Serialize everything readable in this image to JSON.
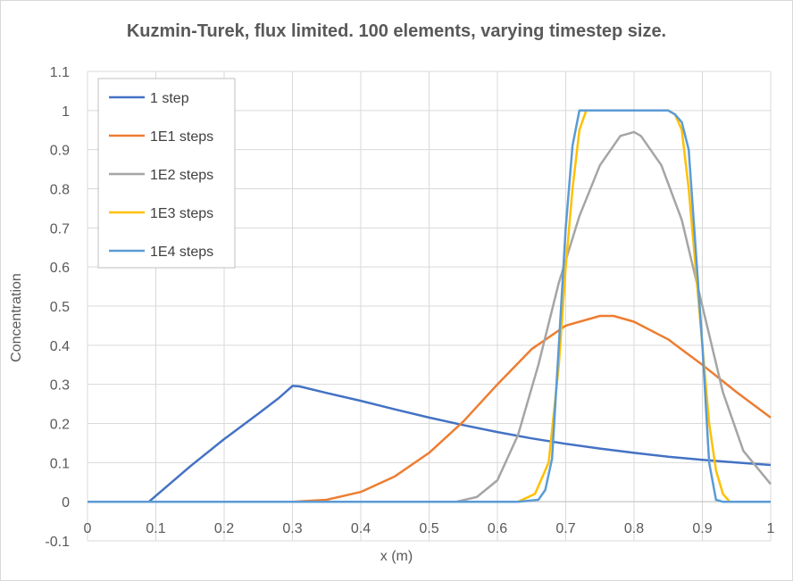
{
  "chart_data": {
    "type": "line",
    "title": "Kuzmin-Turek, flux limited. 100 elements, varying timestep size.",
    "xlabel": "x (m)",
    "ylabel": "Concentration",
    "xlim": [
      0,
      1
    ],
    "ylim": [
      -0.1,
      1.1
    ],
    "x_ticks": [
      "0",
      "0.1",
      "0.2",
      "0.3",
      "0.4",
      "0.5",
      "0.6",
      "0.7",
      "0.8",
      "0.9",
      "1"
    ],
    "y_ticks": [
      "-0.1",
      "0",
      "0.1",
      "0.2",
      "0.3",
      "0.4",
      "0.5",
      "0.6",
      "0.7",
      "0.8",
      "0.9",
      "1",
      "1.1"
    ],
    "grid": true,
    "legend_position": "top-left",
    "series": [
      {
        "name": "1 step",
        "color": "#4472c4",
        "points": [
          [
            0,
            0
          ],
          [
            0.09,
            0
          ],
          [
            0.1,
            0.015
          ],
          [
            0.15,
            0.09
          ],
          [
            0.2,
            0.16
          ],
          [
            0.25,
            0.225
          ],
          [
            0.28,
            0.265
          ],
          [
            0.3,
            0.296
          ],
          [
            0.31,
            0.295
          ],
          [
            0.35,
            0.278
          ],
          [
            0.4,
            0.258
          ],
          [
            0.45,
            0.236
          ],
          [
            0.5,
            0.215
          ],
          [
            0.55,
            0.196
          ],
          [
            0.6,
            0.178
          ],
          [
            0.65,
            0.162
          ],
          [
            0.7,
            0.148
          ],
          [
            0.75,
            0.136
          ],
          [
            0.8,
            0.125
          ],
          [
            0.85,
            0.115
          ],
          [
            0.9,
            0.107
          ],
          [
            0.95,
            0.1
          ],
          [
            1,
            0.094
          ]
        ]
      },
      {
        "name": "1E1 steps",
        "color": "#ed7d31",
        "points": [
          [
            0,
            0
          ],
          [
            0.3,
            0
          ],
          [
            0.35,
            0.005
          ],
          [
            0.4,
            0.025
          ],
          [
            0.45,
            0.065
          ],
          [
            0.5,
            0.125
          ],
          [
            0.55,
            0.205
          ],
          [
            0.6,
            0.3
          ],
          [
            0.65,
            0.39
          ],
          [
            0.7,
            0.45
          ],
          [
            0.75,
            0.475
          ],
          [
            0.77,
            0.475
          ],
          [
            0.8,
            0.46
          ],
          [
            0.85,
            0.415
          ],
          [
            0.9,
            0.35
          ],
          [
            0.95,
            0.28
          ],
          [
            1,
            0.215
          ]
        ]
      },
      {
        "name": "1E2 steps",
        "color": "#a5a5a5",
        "points": [
          [
            0,
            0
          ],
          [
            0.54,
            0
          ],
          [
            0.57,
            0.012
          ],
          [
            0.6,
            0.055
          ],
          [
            0.63,
            0.17
          ],
          [
            0.66,
            0.35
          ],
          [
            0.69,
            0.56
          ],
          [
            0.72,
            0.73
          ],
          [
            0.75,
            0.86
          ],
          [
            0.78,
            0.935
          ],
          [
            0.8,
            0.945
          ],
          [
            0.81,
            0.935
          ],
          [
            0.84,
            0.86
          ],
          [
            0.87,
            0.72
          ],
          [
            0.9,
            0.5
          ],
          [
            0.93,
            0.28
          ],
          [
            0.96,
            0.13
          ],
          [
            1,
            0.045
          ]
        ]
      },
      {
        "name": "1E3 steps",
        "color": "#ffc000",
        "points": [
          [
            0,
            0
          ],
          [
            0.63,
            0
          ],
          [
            0.655,
            0.02
          ],
          [
            0.675,
            0.1
          ],
          [
            0.69,
            0.35
          ],
          [
            0.7,
            0.6
          ],
          [
            0.71,
            0.8
          ],
          [
            0.72,
            0.95
          ],
          [
            0.73,
            1
          ],
          [
            0.85,
            1
          ],
          [
            0.86,
            0.99
          ],
          [
            0.87,
            0.95
          ],
          [
            0.88,
            0.8
          ],
          [
            0.89,
            0.6
          ],
          [
            0.9,
            0.4
          ],
          [
            0.91,
            0.2
          ],
          [
            0.92,
            0.08
          ],
          [
            0.93,
            0.02
          ],
          [
            0.94,
            0
          ],
          [
            1,
            0
          ]
        ]
      },
      {
        "name": "1E4 steps",
        "color": "#5b9bd5",
        "points": [
          [
            0,
            0
          ],
          [
            0.63,
            0
          ],
          [
            0.66,
            0.005
          ],
          [
            0.67,
            0.03
          ],
          [
            0.68,
            0.11
          ],
          [
            0.69,
            0.4
          ],
          [
            0.7,
            0.7
          ],
          [
            0.71,
            0.91
          ],
          [
            0.72,
            1
          ],
          [
            0.85,
            1
          ],
          [
            0.86,
            0.99
          ],
          [
            0.87,
            0.97
          ],
          [
            0.88,
            0.9
          ],
          [
            0.89,
            0.65
          ],
          [
            0.9,
            0.4
          ],
          [
            0.91,
            0.1
          ],
          [
            0.92,
            0.005
          ],
          [
            0.93,
            0
          ],
          [
            1,
            0
          ]
        ]
      }
    ]
  }
}
